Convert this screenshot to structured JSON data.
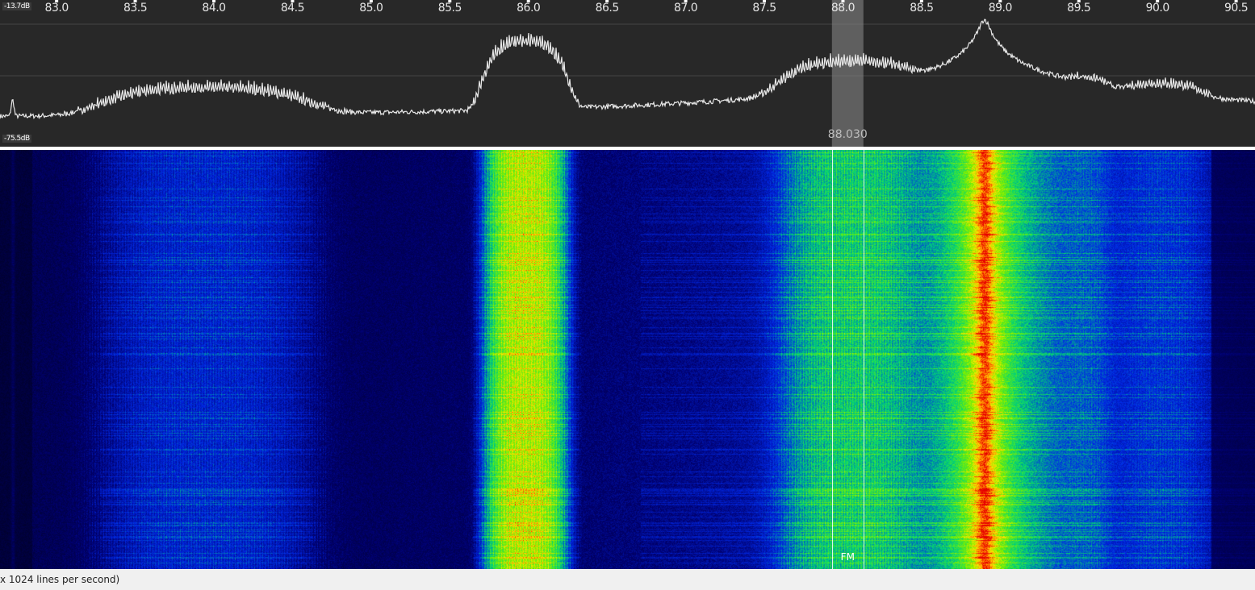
{
  "spectrum": {
    "top_db_label": "-13.7dB",
    "bottom_db_label": "-75.5dB",
    "top_db": -13.7,
    "bottom_db": -75.5,
    "axis_ticks": [
      "83.0",
      "83.5",
      "84.0",
      "84.5",
      "85.0",
      "85.5",
      "86.0",
      "86.5",
      "87.0",
      "87.5",
      "88.0",
      "88.5",
      "89.0",
      "89.5",
      "90.0",
      "90.5"
    ],
    "freq_range_mhz": [
      82.64,
      90.62
    ],
    "trace_color": "#e8e8e8",
    "signals": [
      {
        "center_mhz": 82.72,
        "width_mhz": 0.02,
        "peak_db": -57,
        "type": "spike"
      },
      {
        "center_mhz": 83.95,
        "width_mhz": 1.1,
        "peak_db": -48,
        "type": "broadcast"
      },
      {
        "center_mhz": 85.98,
        "width_mhz": 0.35,
        "peak_db": -28,
        "type": "broadcast"
      },
      {
        "center_mhz": 88.05,
        "width_mhz": 0.7,
        "peak_db": -37,
        "type": "broadcast"
      },
      {
        "center_mhz": 88.9,
        "width_mhz": 0.12,
        "peak_db": -22,
        "type": "carrier"
      },
      {
        "center_mhz": 89.55,
        "width_mhz": 0.25,
        "peak_db": -47,
        "type": "broadcast"
      },
      {
        "center_mhz": 90.05,
        "width_mhz": 0.45,
        "peak_db": -48,
        "type": "broadcast"
      }
    ]
  },
  "tuner": {
    "frequency_label": "88.030",
    "frequency_mhz": 88.03,
    "bandwidth_mhz": 0.2,
    "mode_label": "FM"
  },
  "status": {
    "text": "x 1024 lines per second)"
  }
}
